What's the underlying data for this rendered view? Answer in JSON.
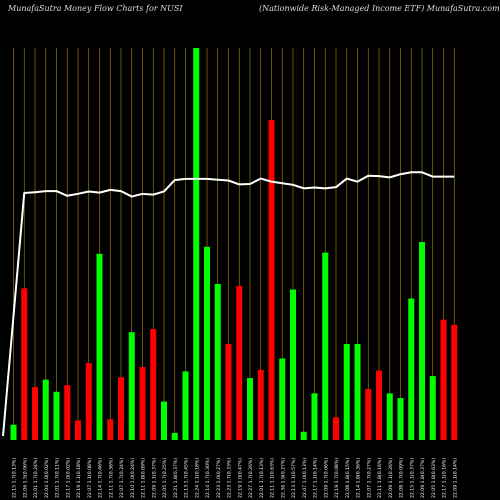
{
  "header": {
    "title_left": "MunafaSutra  Money Flow  Charts for NUSI",
    "title_right": "(Nationwide    Risk-Managed Income    ETF) MunafaSutra.com"
  },
  "colors": {
    "background": "#000000",
    "up_bar": "#00ff00",
    "down_bar": "#ff0000",
    "grid": "#b8860b",
    "line": "#ffffff",
    "label": "#ffffff"
  },
  "chart_data": {
    "type": "bar",
    "ylim": [
      0,
      100
    ],
    "grid": true,
    "categories": [
      "22.15 1.7(0.13%)",
      "22.06 1.5(0.06%)",
      "22.01 1.7(0.24%)",
      "22.04 1.0(0.02%)",
      "22.01 1.7(0.11%)",
      "22.17 1.0(0.02%)",
      "22.19 1.1(0.18%)",
      "22.07 1.1(0.08%)",
      "22.14 1.7(0.46%)",
      "22.11 1.7(0.36%)",
      "22.07 1.7(0.24%)",
      "22.10 1.0(0.24%)",
      "22.11 1.8(0.09%)",
      "22.09 1.1(0.37%)",
      "22.05 1.7(0.25%)",
      "22.21 1.8(0.37%)",
      "22.13 1.7(0.45%)",
      "22.24 1.1(0.18%)",
      "22.14 1.7(0.30%)",
      "22.23 1.0(0.27%)",
      "22.23 1.7(0.33%)",
      "22.19 1.0(0.47%)",
      "22.27 1.7(0.26%)",
      "22.01 1.7(0.13%)",
      "22.11 1.1(0.63%)",
      "22.36 1.9(0.27%)",
      "22.13 1.1(0.57%)",
      "22.07 1.0(0.13%)",
      "22.17 1.1(0.14%)",
      "22.09 1.7(0.06%)",
      "22.19 1.7(0.08%)",
      "22.08 1.8(0.15%)",
      "22.14 1.8(0.36%)",
      "22.07 1.7(0.27%)",
      "22.11 1.8(0.16%)",
      "22.09 1.1(0.26%)",
      "22.08 1.7(0.09%)",
      "22.15 1.1(0.37%)",
      "22.09 1.8(0.37%)",
      "22.05 1.8(0.63%)",
      "22.17 1.1(0.16%)",
      "22.09 1.1(0.14%)"
    ],
    "series": [
      {
        "values": [
          3.9,
          38.7,
          13.5,
          15.4,
          12.3,
          14.0,
          5.0,
          19.6,
          47.5,
          5.3,
          16.0,
          27.5,
          18.6,
          28.3,
          9.8,
          1.8,
          17.5,
          100,
          49.3,
          39.8,
          24.5,
          39.3,
          15.8,
          17.9,
          81.6,
          20.8,
          38.4,
          2.1,
          11.9,
          47.8,
          5.8,
          24.5,
          24.5,
          13.0,
          17.7,
          11.9,
          10.7,
          36.1,
          50.5,
          16.3,
          30.7,
          29.4
        ],
        "colors": [
          "up",
          "down",
          "down",
          "up",
          "up",
          "down",
          "down",
          "down",
          "up",
          "down",
          "down",
          "up",
          "down",
          "down",
          "up",
          "up",
          "up",
          "up",
          "up",
          "up",
          "down",
          "down",
          "up",
          "down",
          "down",
          "up",
          "up",
          "up",
          "up",
          "up",
          "down",
          "up",
          "up",
          "down",
          "down",
          "up",
          "up",
          "up",
          "up",
          "up",
          "down",
          "down"
        ]
      }
    ],
    "line_series": {
      "values": [
        1,
        63,
        63.2,
        63.5,
        63.5,
        62.3,
        62.8,
        63.4,
        63.1,
        63.8,
        63.5,
        62.1,
        62.8,
        62.6,
        63.4,
        66.3,
        66.6,
        66.6,
        66.6,
        66.4,
        66.2,
        65.2,
        65.3,
        66.7,
        65.9,
        65.5,
        65.1,
        64.2,
        64.4,
        64.2,
        64.5,
        66.7,
        65.9,
        67.4,
        67.3,
        67.0,
        67.8,
        68.3,
        68.3,
        67.2,
        67.2,
        67.2
      ]
    }
  }
}
